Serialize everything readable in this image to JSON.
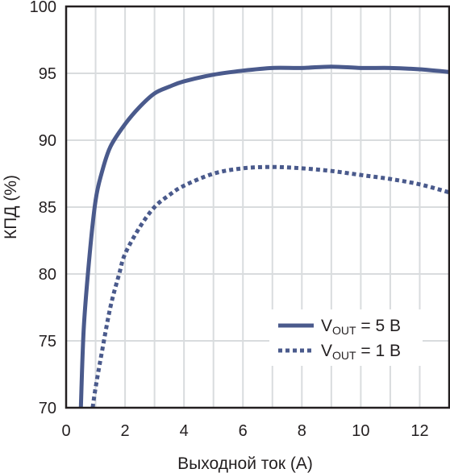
{
  "chart_data": {
    "type": "line",
    "title": "",
    "xlabel": "Выходной ток (А)",
    "ylabel": "КПД (%)",
    "xlim": [
      0,
      13
    ],
    "ylim": [
      70,
      100
    ],
    "xticks": [
      0,
      2,
      4,
      6,
      8,
      10,
      12
    ],
    "yticks": [
      70,
      75,
      80,
      85,
      90,
      95,
      100
    ],
    "grid": true,
    "legend_position": "bottom-right",
    "series": [
      {
        "name_main": "V",
        "name_sub": "OUT",
        "name_rest": " = 5 В",
        "style": "solid",
        "color": "#4a5a8c",
        "x": [
          0.5,
          0.6,
          0.8,
          1.0,
          1.2,
          1.5,
          2.0,
          2.5,
          3.0,
          3.5,
          4.0,
          5.0,
          6.0,
          7.0,
          8.0,
          9.0,
          10.0,
          11.0,
          12.0,
          13.0
        ],
        "y": [
          70.0,
          76.0,
          81.5,
          85.5,
          87.5,
          89.5,
          91.2,
          92.5,
          93.5,
          94.0,
          94.4,
          94.9,
          95.2,
          95.4,
          95.4,
          95.5,
          95.4,
          95.4,
          95.3,
          95.1
        ]
      },
      {
        "name_main": "V",
        "name_sub": "OUT",
        "name_rest": " = 1 В",
        "style": "dotted",
        "color": "#4a5a8c",
        "x": [
          0.9,
          1.0,
          1.2,
          1.5,
          1.8,
          2.0,
          2.5,
          3.0,
          3.5,
          4.0,
          5.0,
          6.0,
          7.0,
          8.0,
          9.0,
          10.0,
          11.0,
          12.0,
          13.0
        ],
        "y": [
          70.0,
          71.5,
          74.0,
          77.5,
          80.0,
          81.5,
          83.5,
          85.0,
          85.9,
          86.6,
          87.5,
          87.9,
          88.0,
          87.9,
          87.7,
          87.4,
          87.1,
          86.7,
          86.1
        ]
      }
    ]
  }
}
